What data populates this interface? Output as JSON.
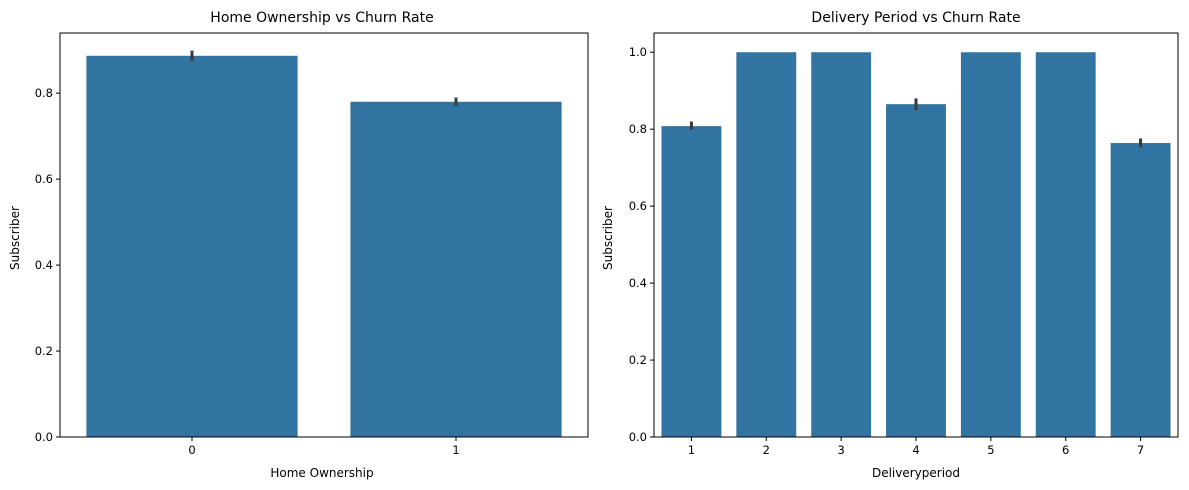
{
  "chart_data": [
    {
      "type": "bar",
      "title": "Home Ownership vs Churn Rate",
      "xlabel": "Home Ownership",
      "ylabel": "Subscriber",
      "categories": [
        "0",
        "1"
      ],
      "values": [
        0.887,
        0.78
      ],
      "error_low": [
        0.875,
        0.771
      ],
      "error_high": [
        0.899,
        0.79
      ],
      "ylim": [
        0,
        0.94
      ],
      "yticks": [
        0.0,
        0.2,
        0.4,
        0.6,
        0.8
      ],
      "ytick_labels": [
        "0.0",
        "0.2",
        "0.4",
        "0.6",
        "0.8"
      ],
      "color": "#3274a1",
      "error_color": "#3a3a3a"
    },
    {
      "type": "bar",
      "title": "Delivery Period vs Churn Rate",
      "xlabel": "Deliveryperiod",
      "ylabel": "Subscriber",
      "categories": [
        "1",
        "2",
        "3",
        "4",
        "5",
        "6",
        "7"
      ],
      "values": [
        0.808,
        1.0,
        1.0,
        0.865,
        1.0,
        1.0,
        0.764
      ],
      "error_low": [
        0.799,
        null,
        null,
        0.85,
        null,
        null,
        0.753
      ],
      "error_high": [
        0.82,
        null,
        null,
        0.88,
        null,
        null,
        0.776
      ],
      "ylim": [
        0,
        1.05
      ],
      "yticks": [
        0.0,
        0.2,
        0.4,
        0.6,
        0.8,
        1.0
      ],
      "ytick_labels": [
        "0.0",
        "0.2",
        "0.4",
        "0.6",
        "0.8",
        "1.0"
      ],
      "color": "#3274a1",
      "error_color": "#3a3a3a"
    }
  ]
}
